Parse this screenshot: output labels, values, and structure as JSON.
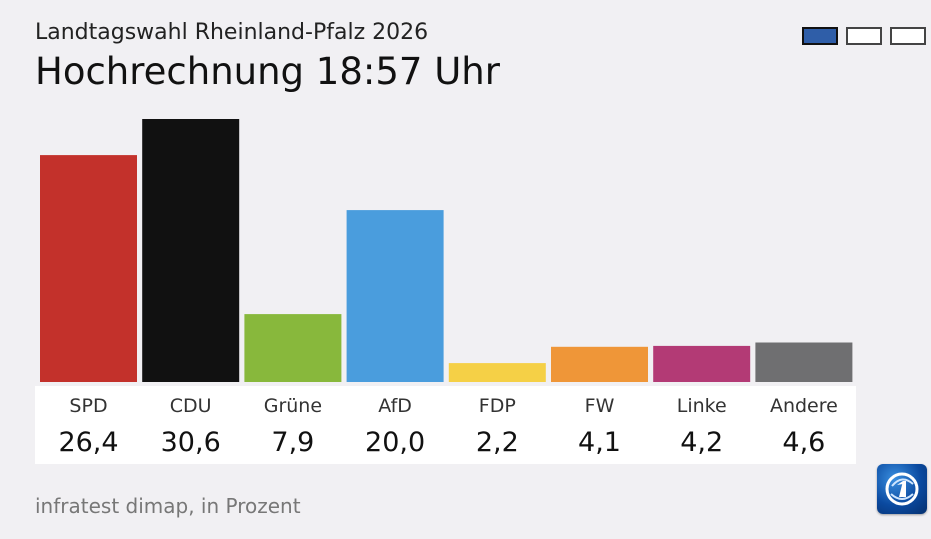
{
  "header": {
    "subtitle": "Landtagswahl Rheinland-Pfalz 2026",
    "title": "Hochrechnung 18:57 Uhr"
  },
  "pager": {
    "count": 3,
    "active_index": 0
  },
  "chart_data": {
    "type": "bar",
    "title": "Hochrechnung 18:57 Uhr",
    "subtitle": "Landtagswahl Rheinland-Pfalz 2026",
    "categories": [
      "SPD",
      "CDU",
      "Grüne",
      "AfD",
      "FDP",
      "FW",
      "Linke",
      "Andere"
    ],
    "values": [
      26.4,
      30.6,
      7.9,
      20.0,
      2.2,
      4.1,
      4.2,
      4.6
    ],
    "value_labels": [
      "26,4",
      "30,6",
      "7,9",
      "20,0",
      "2,2",
      "4,1",
      "4,2",
      "4,6"
    ],
    "colors": [
      "#c3312b",
      "#111111",
      "#88b83c",
      "#4a9ddd",
      "#f5d046",
      "#ef9638",
      "#b33a75",
      "#6f6f71"
    ],
    "unit": "Prozent",
    "xlabel": "",
    "ylabel": "",
    "ylim": [
      0,
      30.6
    ],
    "grid": false,
    "legend": "none"
  },
  "footer": {
    "source": "infratest dimap, in Prozent",
    "logo_icon": "ard-logo-icon"
  }
}
